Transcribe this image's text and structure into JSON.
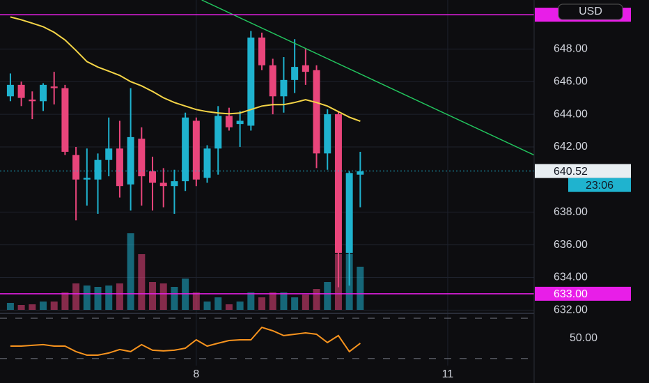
{
  "chart_data": {
    "type": "candlestick",
    "currency": "USD",
    "up_color": "#1fb3cf",
    "down_color": "#e9457b",
    "open": [
      645.1,
      645.8,
      644.9,
      644.8,
      645.7,
      645.6,
      641.5,
      640.0,
      640.0,
      641.2,
      641.9,
      639.7,
      642.5,
      640.5,
      639.8,
      639.6,
      639.9,
      643.6,
      640.1,
      641.9,
      643.9,
      643.4,
      643.3,
      648.7,
      647.0,
      645.1,
      646.1,
      647.0,
      646.7,
      641.6,
      644.0,
      635.5,
      640.3
    ],
    "high": [
      646.5,
      646.0,
      645.4,
      645.9,
      646.6,
      645.8,
      642.0,
      641.9,
      641.6,
      643.8,
      643.6,
      645.6,
      643.2,
      641.4,
      640.7,
      640.6,
      644.1,
      643.8,
      642.1,
      644.5,
      644.4,
      644.2,
      649.1,
      649.0,
      647.4,
      647.5,
      648.6,
      648.0,
      647.0,
      644.3,
      644.2,
      640.5,
      641.7
    ],
    "low": [
      644.8,
      644.5,
      643.7,
      644.2,
      644.6,
      641.5,
      637.5,
      638.4,
      637.9,
      640.2,
      638.9,
      638.1,
      638.4,
      638.1,
      638.3,
      637.9,
      639.3,
      639.6,
      639.8,
      640.3,
      643.0,
      642.0,
      643.0,
      646.7,
      644.0,
      644.1,
      645.3,
      645.8,
      640.7,
      640.6,
      633.4,
      633.5,
      638.3
    ],
    "close": [
      645.8,
      645.0,
      644.8,
      645.8,
      645.6,
      641.7,
      640.0,
      640.1,
      641.2,
      641.9,
      639.6,
      642.6,
      640.2,
      639.8,
      639.6,
      639.9,
      643.8,
      640.0,
      641.9,
      643.9,
      643.2,
      643.6,
      648.7,
      647.0,
      645.1,
      646.1,
      646.9,
      646.6,
      641.6,
      644.0,
      635.5,
      640.4,
      640.5
    ],
    "volume": [
      10,
      7,
      8,
      12,
      12,
      25,
      38,
      35,
      33,
      35,
      38,
      110,
      80,
      40,
      38,
      33,
      45,
      25,
      12,
      18,
      8,
      12,
      25,
      18,
      25,
      25,
      18,
      22,
      30,
      40,
      80,
      80,
      62
    ],
    "volume_ylim": [
      0,
      450
    ],
    "ma": {
      "color": "#f5d547",
      "values": [
        649.96,
        649.79,
        649.58,
        649.36,
        649.02,
        648.55,
        647.91,
        647.23,
        646.89,
        646.64,
        646.38,
        646.0,
        645.74,
        645.4,
        645.01,
        644.72,
        644.5,
        644.29,
        644.16,
        644.08,
        644.03,
        644.08,
        644.29,
        644.5,
        644.59,
        644.59,
        644.72,
        644.89,
        644.72,
        644.5,
        644.16,
        643.82,
        643.57
      ]
    },
    "rsi": {
      "color": "#f7931e",
      "values": [
        42.4,
        42.4,
        43.1,
        43.8,
        42.4,
        42.4,
        36.9,
        33.4,
        33.4,
        35.5,
        39.0,
        36.9,
        43.8,
        38.3,
        37.6,
        38.3,
        40.3,
        48.6,
        42.4,
        45.2,
        47.9,
        48.6,
        48.6,
        61.0,
        57.6,
        52.8,
        54.1,
        55.5,
        54.1,
        45.9,
        52.8,
        36.9,
        45.2
      ],
      "ylim": [
        23,
        73.5
      ],
      "yticks": [
        {
          "value": 50,
          "label": "50.00"
        }
      ],
      "levels": [
        70,
        30
      ]
    },
    "xlim": [
      -0.95,
      47.9
    ],
    "xticks": [
      {
        "value": 17,
        "label": "8"
      },
      {
        "value": 40,
        "label": "11"
      }
    ],
    "ylim": [
      631.8,
      651.0
    ],
    "yticks": [
      {
        "value": 632,
        "label": "632.00"
      },
      {
        "value": 634,
        "label": "634.00"
      },
      {
        "value": 636,
        "label": "636.00"
      },
      {
        "value": 638,
        "label": "638.00"
      },
      {
        "value": 642,
        "label": "642.00"
      },
      {
        "value": 644,
        "label": "644.00"
      },
      {
        "value": 646,
        "label": "646.00"
      },
      {
        "value": 648,
        "label": "648.00"
      }
    ],
    "grid": true,
    "trend_line": {
      "color": "#22c55e",
      "x": [
        17.5,
        47.9
      ],
      "y": [
        651.0,
        641.5
      ]
    },
    "levels": [
      {
        "value": 650.1
      },
      {
        "value": 633.0,
        "label": "633.00"
      }
    ],
    "level_color": "#e81ee8",
    "last_price": {
      "value": 640.52,
      "label": "640.52",
      "countdown": "23:06"
    }
  }
}
